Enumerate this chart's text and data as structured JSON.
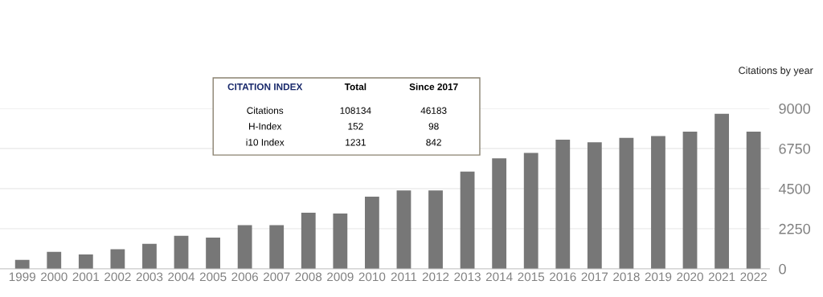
{
  "chart_data": {
    "type": "bar",
    "ylabel": "Citations by year",
    "categories": [
      "1999",
      "2000",
      "2001",
      "2002",
      "2003",
      "2004",
      "2005",
      "2006",
      "2007",
      "2008",
      "2009",
      "2010",
      "2011",
      "2012",
      "2013",
      "2014",
      "2015",
      "2016",
      "2017",
      "2018",
      "2019",
      "2020",
      "2021",
      "2022"
    ],
    "values": [
      500,
      950,
      800,
      1100,
      1400,
      1850,
      1750,
      2450,
      2450,
      3150,
      3100,
      4050,
      4400,
      4400,
      5450,
      6200,
      6500,
      7250,
      7100,
      7350,
      7450,
      7700,
      8700,
      7700
    ],
    "color": "#777777",
    "ylim": [
      0,
      9000
    ],
    "yticks": [
      0,
      2250,
      4500,
      6750,
      9000
    ],
    "grid": "y",
    "annotations": [
      "CITATION INDEX",
      "Total",
      "Since 2017",
      "Citations",
      "108134",
      "46183",
      "H-Index",
      "152",
      "98",
      "i10 Index",
      "1231",
      "842"
    ]
  }
}
